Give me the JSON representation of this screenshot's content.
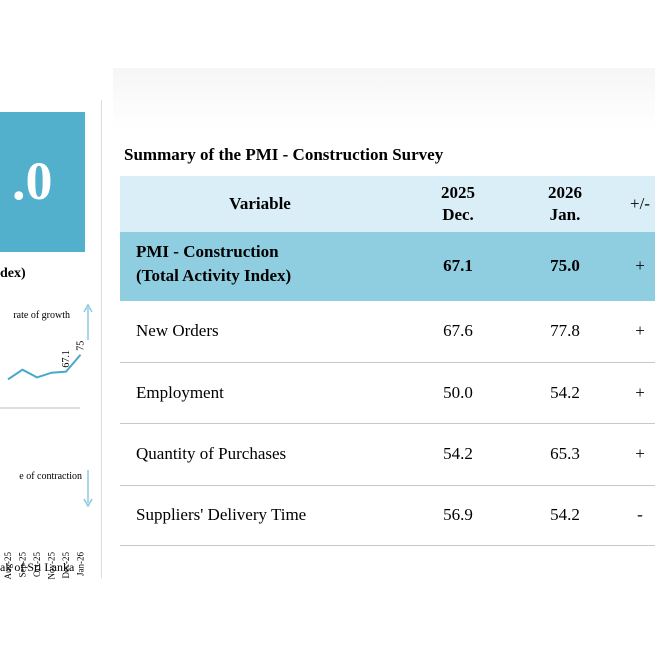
{
  "document": {
    "headline_value": ".0",
    "index_caption": "dex)",
    "source": "ak of Sri Lanka",
    "table": {
      "title": "Summary of the PMI - Construction Survey",
      "columns": [
        "Variable",
        {
          "line1": "2025",
          "line2": "Dec."
        },
        {
          "line1": "2026",
          "line2": "Jan."
        },
        "+/-"
      ],
      "rows": [
        [
          [
            "PMI - Construction",
            "(Total Activity Index)"
          ],
          "67.1",
          "75.0",
          "+"
        ],
        [
          "New Orders",
          "67.6",
          "77.8",
          "+"
        ],
        [
          "Employment",
          "50.0",
          "54.2",
          "+"
        ],
        [
          "Quantity of Purchases",
          "54.2",
          "65.3",
          "+"
        ],
        [
          "Suppliers' Delivery Time",
          "56.9",
          "54.2",
          "-"
        ]
      ]
    }
  },
  "chart_data": {
    "type": "line",
    "categories": [
      "Aug-25",
      "Sep-25",
      "Oct-25",
      "Nov-25",
      "Dec-25",
      "Jan-26"
    ],
    "values": [
      63.5,
      68.0,
      64.4,
      66.6,
      67.1,
      75.0
    ],
    "color": "#4aa8cc",
    "ylim": [
      45,
      80
    ],
    "annotations": [
      "rate of growth",
      "e of contraction"
    ]
  }
}
